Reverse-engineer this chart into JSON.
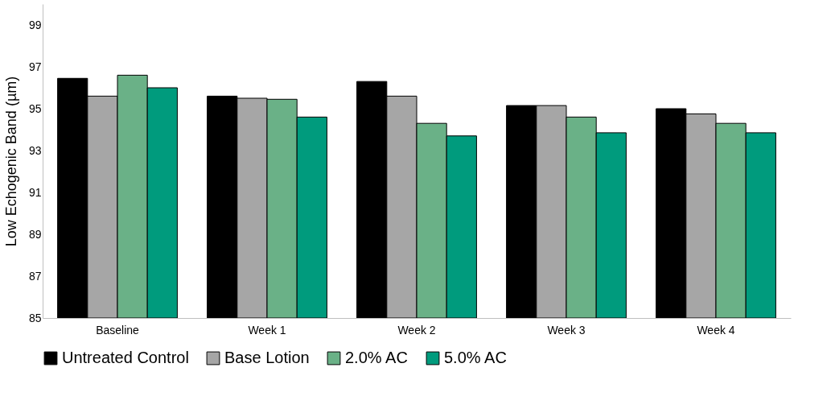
{
  "chart_data": {
    "type": "bar",
    "ylabel": "Low Echogenic Band (µm)",
    "categories": [
      "Baseline",
      "Week 1",
      "Week 2",
      "Week 3",
      "Week 4"
    ],
    "series": [
      {
        "name": "Untreated Control",
        "color": "#000000",
        "values": [
          96.45,
          95.6,
          96.3,
          95.15,
          95.0
        ]
      },
      {
        "name": "Base Lotion",
        "color": "#a6a6a6",
        "values": [
          95.6,
          95.5,
          95.6,
          95.15,
          94.75
        ]
      },
      {
        "name": "2.0% AC",
        "color": "#6ab187",
        "values": [
          96.6,
          95.45,
          94.3,
          94.6,
          94.3
        ]
      },
      {
        "name": "5.0% AC",
        "color": "#009b7d",
        "values": [
          96.0,
          94.6,
          93.7,
          93.85,
          93.85
        ]
      }
    ],
    "ylim": [
      85,
      100
    ],
    "yticks": [
      85,
      87,
      89,
      91,
      93,
      95,
      97,
      99
    ],
    "grid": false,
    "legend": "bottom"
  }
}
